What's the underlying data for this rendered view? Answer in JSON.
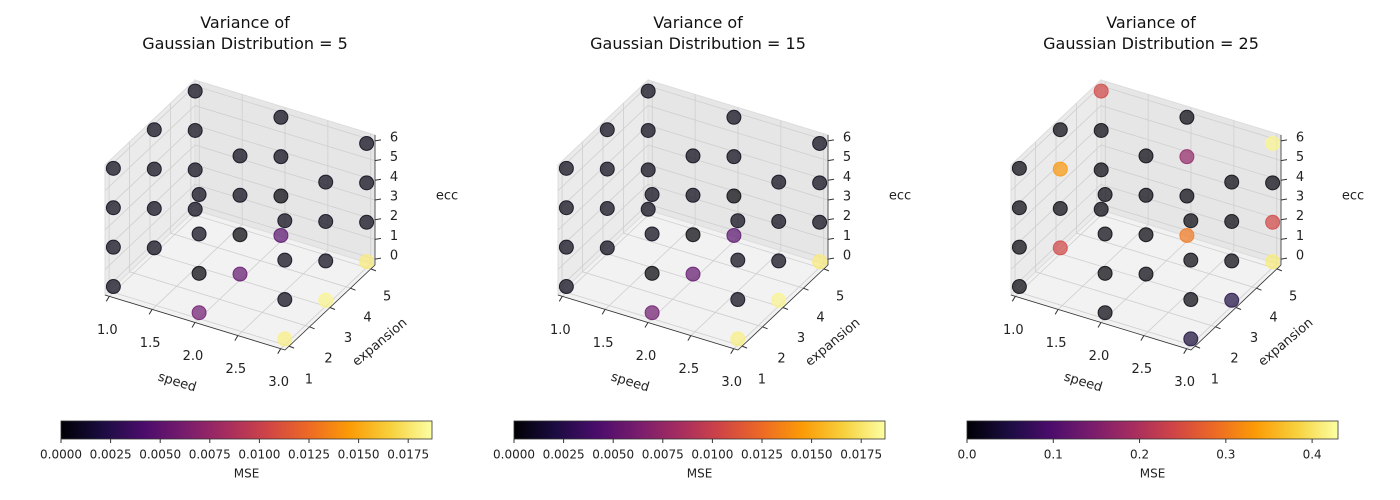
{
  "chart_data": [
    {
      "type": "scatter3d",
      "title": "Variance of\nGaussian Distribution = 5",
      "xlabel": "speed",
      "ylabel": "expansion",
      "zlabel": "ecc",
      "colormap": "inferno",
      "x": [
        1,
        1,
        1,
        1,
        1,
        1,
        1,
        1,
        1,
        1,
        1,
        1,
        2,
        2,
        2,
        2,
        2,
        2,
        2,
        2,
        2,
        2,
        2,
        2,
        3,
        3,
        3,
        3,
        3,
        3,
        3,
        3,
        3,
        3,
        3,
        3
      ],
      "y": [
        1,
        1,
        1,
        1,
        3,
        3,
        3,
        3,
        5,
        5,
        5,
        5,
        1,
        1,
        1,
        1,
        3,
        3,
        3,
        3,
        5,
        5,
        5,
        5,
        1,
        1,
        1,
        1,
        3,
        3,
        3,
        3,
        5,
        5,
        5,
        5
      ],
      "z": [
        0,
        2,
        4,
        6,
        0,
        2,
        4,
        6,
        0,
        2,
        4,
        6,
        0,
        2,
        4,
        6,
        0,
        2,
        4,
        6,
        0,
        2,
        4,
        6,
        0,
        2,
        4,
        6,
        0,
        2,
        4,
        6,
        0,
        2,
        4,
        6
      ],
      "values": [
        0.0005,
        0.0005,
        0.0005,
        0.0005,
        0.0005,
        0.0005,
        0.0005,
        0.0005,
        0.0005,
        0.0005,
        0.0005,
        0.0005,
        0.0058,
        0.0001,
        0.0005,
        0.0005,
        0.0052,
        0.0001,
        0.0005,
        0.0005,
        0.0048,
        0.0001,
        0.0005,
        0.0005,
        0.018,
        0.0005,
        0.0005,
        0.0005,
        0.0182,
        0.0005,
        0.0005,
        0.0005,
        0.0178,
        0.0005,
        0.0005,
        0.0005
      ],
      "xlim": [
        0.95,
        3.05
      ],
      "ylim": [
        0.8,
        5.2
      ],
      "zlim": [
        -0.3,
        6.3
      ],
      "xticks": [
        {
          "value": 1,
          "label": "1.0"
        },
        1.5,
        {
          "value": 2,
          "label": "2.0"
        },
        2.5,
        {
          "value": 3,
          "label": "3.0"
        }
      ],
      "yticks": [
        1,
        2,
        3,
        4,
        5
      ],
      "zticks": [
        0,
        1,
        2,
        3,
        4,
        5,
        6
      ],
      "colorbar": {
        "label": "MSE",
        "lim": [
          0,
          0.0187
        ],
        "ticks": [
          {
            "value": 0,
            "label": "0.0000"
          },
          0.0025,
          {
            "value": 0.005,
            "label": "0.0050"
          },
          0.0075,
          {
            "value": 0.01,
            "label": "0.0100"
          },
          0.0125,
          {
            "value": 0.015,
            "label": "0.0150"
          },
          0.0175
        ]
      }
    },
    {
      "type": "scatter3d",
      "title": "Variance of\nGaussian Distribution = 15",
      "xlabel": "speed",
      "ylabel": "expansion",
      "zlabel": "ecc",
      "colormap": "inferno",
      "x": [
        1,
        1,
        1,
        1,
        1,
        1,
        1,
        1,
        1,
        1,
        1,
        1,
        2,
        2,
        2,
        2,
        2,
        2,
        2,
        2,
        2,
        2,
        2,
        2,
        3,
        3,
        3,
        3,
        3,
        3,
        3,
        3,
        3,
        3,
        3,
        3
      ],
      "y": [
        1,
        1,
        1,
        1,
        3,
        3,
        3,
        3,
        5,
        5,
        5,
        5,
        1,
        1,
        1,
        1,
        3,
        3,
        3,
        3,
        5,
        5,
        5,
        5,
        1,
        1,
        1,
        1,
        3,
        3,
        3,
        3,
        5,
        5,
        5,
        5
      ],
      "z": [
        0,
        2,
        4,
        6,
        0,
        2,
        4,
        6,
        0,
        2,
        4,
        6,
        0,
        2,
        4,
        6,
        0,
        2,
        4,
        6,
        0,
        2,
        4,
        6,
        0,
        2,
        4,
        6,
        0,
        2,
        4,
        6,
        0,
        2,
        4,
        6
      ],
      "values": [
        0.0005,
        0.0005,
        0.0005,
        0.0005,
        0.0005,
        0.0005,
        0.0005,
        0.0005,
        0.0005,
        0.0005,
        0.0005,
        0.0005,
        0.0058,
        0.0001,
        0.0005,
        0.0005,
        0.0052,
        0.0001,
        0.0005,
        0.0005,
        0.0048,
        0.0001,
        0.0005,
        0.0005,
        0.018,
        0.0005,
        0.0005,
        0.0005,
        0.0182,
        0.0005,
        0.0005,
        0.0005,
        0.0178,
        0.0005,
        0.0005,
        0.0005
      ],
      "xlim": [
        0.95,
        3.05
      ],
      "ylim": [
        0.8,
        5.2
      ],
      "zlim": [
        -0.3,
        6.3
      ],
      "xticks": [
        {
          "value": 1,
          "label": "1.0"
        },
        1.5,
        {
          "value": 2,
          "label": "2.0"
        },
        2.5,
        {
          "value": 3,
          "label": "3.0"
        }
      ],
      "yticks": [
        1,
        2,
        3,
        4,
        5
      ],
      "zticks": [
        0,
        1,
        2,
        3,
        4,
        5,
        6
      ],
      "colorbar": {
        "label": "MSE",
        "lim": [
          0,
          0.0187
        ],
        "ticks": [
          {
            "value": 0,
            "label": "0.0000"
          },
          0.0025,
          {
            "value": 0.005,
            "label": "0.0050"
          },
          0.0075,
          {
            "value": 0.01,
            "label": "0.0100"
          },
          0.0125,
          {
            "value": 0.015,
            "label": "0.0150"
          },
          0.0175
        ]
      }
    },
    {
      "type": "scatter3d",
      "title": "Variance of\nGaussian Distribution = 25",
      "xlabel": "speed",
      "ylabel": "expansion",
      "zlabel": "ecc",
      "colormap": "inferno",
      "x": [
        1,
        1,
        1,
        1,
        1,
        1,
        1,
        1,
        1,
        1,
        1,
        1,
        2,
        2,
        2,
        2,
        2,
        2,
        2,
        2,
        2,
        2,
        2,
        2,
        3,
        3,
        3,
        3,
        3,
        3,
        3,
        3,
        3,
        3,
        3,
        3
      ],
      "y": [
        1,
        1,
        1,
        1,
        3,
        3,
        3,
        3,
        5,
        5,
        5,
        5,
        1,
        1,
        1,
        1,
        3,
        3,
        3,
        3,
        5,
        5,
        5,
        5,
        1,
        1,
        1,
        1,
        3,
        3,
        3,
        3,
        5,
        5,
        5,
        5
      ],
      "z": [
        0,
        2,
        4,
        6,
        0,
        2,
        4,
        6,
        0,
        2,
        4,
        6,
        0,
        2,
        4,
        6,
        0,
        2,
        4,
        6,
        0,
        2,
        4,
        6,
        0,
        2,
        4,
        6,
        0,
        2,
        4,
        6,
        0,
        2,
        4,
        6
      ],
      "values": [
        0.005,
        0.005,
        0.005,
        0.005,
        0.24,
        0.005,
        0.33,
        0.005,
        0.005,
        0.005,
        0.005,
        0.24,
        0.005,
        0.002,
        0.005,
        0.005,
        0.005,
        0.002,
        0.005,
        0.005,
        0.3,
        0.005,
        0.17,
        0.005,
        0.04,
        0.005,
        0.005,
        0.005,
        0.05,
        0.005,
        0.005,
        0.005,
        0.41,
        0.24,
        0.005,
        0.42
      ],
      "xlim": [
        0.95,
        3.05
      ],
      "ylim": [
        0.8,
        5.2
      ],
      "zlim": [
        -0.3,
        6.3
      ],
      "xticks": [
        {
          "value": 1,
          "label": "1.0"
        },
        1.5,
        {
          "value": 2,
          "label": "2.0"
        },
        2.5,
        {
          "value": 3,
          "label": "3.0"
        }
      ],
      "yticks": [
        1,
        2,
        3,
        4,
        5
      ],
      "zticks": [
        0,
        1,
        2,
        3,
        4,
        5,
        6
      ],
      "colorbar": {
        "label": "MSE",
        "lim": [
          0,
          0.43
        ],
        "ticks": [
          {
            "value": 0,
            "label": "0.0"
          },
          0.1,
          0.2,
          0.3,
          0.4
        ]
      }
    }
  ]
}
